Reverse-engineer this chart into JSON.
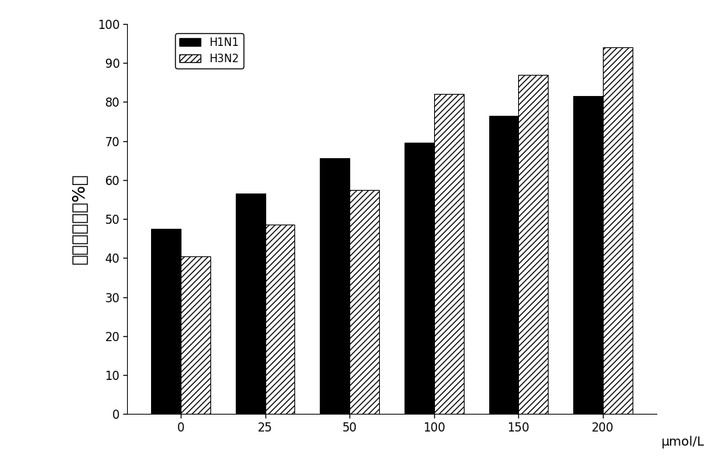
{
  "categories": [
    "0",
    "25",
    "50",
    "100",
    "150",
    "200"
  ],
  "h1n1_values": [
    47.5,
    56.5,
    65.5,
    69.5,
    76.5,
    81.5
  ],
  "h3n2_values": [
    40.5,
    48.5,
    57.5,
    82.0,
    87.0,
    94.0
  ],
  "xlabel": "μmol/L",
  "ylabel": "细胞存活率（%）",
  "ylim": [
    0,
    100
  ],
  "yticks": [
    0,
    10,
    20,
    30,
    40,
    50,
    60,
    70,
    80,
    90,
    100
  ],
  "h1n1_color": "#000000",
  "h1n1_label": "H1N1",
  "h3n2_label": "H3N2",
  "bar_width": 0.35,
  "background_color": "#ffffff",
  "label_fontsize": 13,
  "tick_fontsize": 12,
  "legend_fontsize": 11,
  "ylabel_fontsize": 18
}
